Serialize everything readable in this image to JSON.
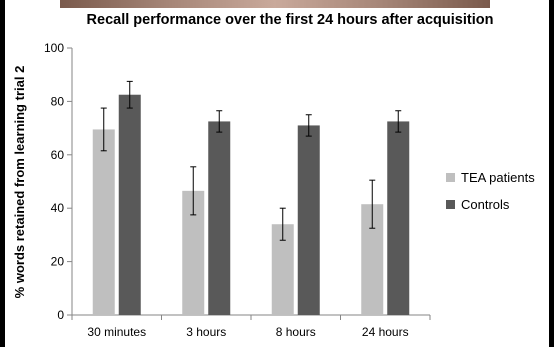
{
  "chart_data": {
    "type": "bar",
    "title": "Recall performance over the first 24 hours after acquisition",
    "xlabel": "",
    "ylabel": "% words retained from learning trial 2",
    "categories": [
      "30 minutes",
      "3 hours",
      "8 hours",
      "24 hours"
    ],
    "ylim": [
      0,
      100
    ],
    "yticks": [
      0,
      20,
      40,
      60,
      80,
      100
    ],
    "grid": false,
    "legend_position": "right",
    "series": [
      {
        "name": "TEA patients",
        "color": "#bfbfbf",
        "values": [
          69.5,
          46.5,
          34,
          41.5
        ],
        "error": [
          8,
          9,
          6,
          9
        ]
      },
      {
        "name": "Controls",
        "color": "#595959",
        "values": [
          82.5,
          72.5,
          71,
          72.5
        ],
        "error": [
          5,
          4,
          4,
          4
        ]
      }
    ]
  }
}
